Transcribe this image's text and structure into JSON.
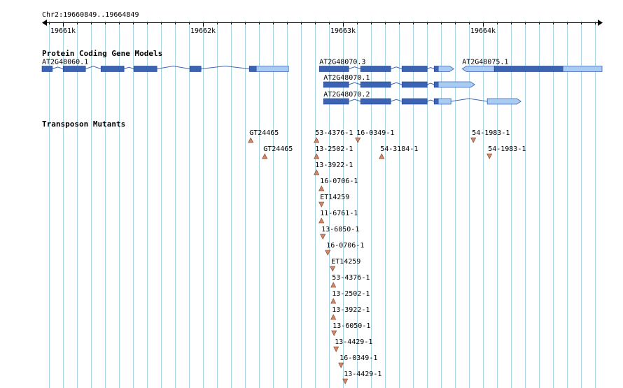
{
  "ruler": {
    "range_label": "Chr2:19660849..19664849",
    "ticks": [
      {
        "label": "19661k",
        "pos": 19661000
      },
      {
        "label": "19662k",
        "pos": 19662000
      },
      {
        "label": "19663k",
        "pos": 19663000
      },
      {
        "label": "19664k",
        "pos": 19664000
      }
    ]
  },
  "colors": {
    "gridline": "#a8d4e4",
    "axis": "#000000",
    "exon_dark": "#3c64b4",
    "exon_light": "#a9cdf2",
    "exon_stroke": "#1e3c8c",
    "intron": "#3c64b4",
    "mutant_marker": "#d2876a",
    "mutant_stroke": "#7a3a1e"
  },
  "tracks": {
    "genes": {
      "title": "Protein Coding Gene Models",
      "models": [
        {
          "name": "AT2G48060.1",
          "row": 0,
          "exons": [
            {
              "s": 19660849,
              "e": 19660923,
              "t": "cds"
            },
            {
              "s": 19661000,
              "e": 19661160,
              "t": "cds"
            },
            {
              "s": 19661270,
              "e": 19661435,
              "t": "cds"
            },
            {
              "s": 19661505,
              "e": 19661670,
              "t": "cds"
            },
            {
              "s": 19661905,
              "e": 19661985,
              "t": "cds"
            },
            {
              "s": 19662330,
              "e": 19662380,
              "t": "cds"
            },
            {
              "s": 19662380,
              "e": 19662610,
              "t": "utr"
            }
          ]
        },
        {
          "name": "AT2G48070.3",
          "row": 0,
          "exons": [
            {
              "s": 19662830,
              "e": 19663040,
              "t": "cds"
            },
            {
              "s": 19663125,
              "e": 19663340,
              "t": "cds"
            },
            {
              "s": 19663420,
              "e": 19663600,
              "t": "cds"
            },
            {
              "s": 19663650,
              "e": 19663680,
              "t": "cds"
            },
            {
              "s": 19663680,
              "e": 19663790,
              "t": "utr",
              "arrow": true
            }
          ]
        },
        {
          "name": "AT2G48075.1",
          "row": 0,
          "exons": [
            {
              "s": 19663850,
              "e": 19664080,
              "t": "utr",
              "arrowLeft": true
            },
            {
              "s": 19664080,
              "e": 19664570,
              "t": "cds"
            },
            {
              "s": 19664570,
              "e": 19664849,
              "t": "utr"
            }
          ]
        },
        {
          "name": "AT2G48070.1",
          "row": 1,
          "exons": [
            {
              "s": 19662860,
              "e": 19663040,
              "t": "cds"
            },
            {
              "s": 19663125,
              "e": 19663340,
              "t": "cds"
            },
            {
              "s": 19663420,
              "e": 19663600,
              "t": "cds"
            },
            {
              "s": 19663650,
              "e": 19663680,
              "t": "cds"
            },
            {
              "s": 19663680,
              "e": 19663940,
              "t": "utr",
              "arrow": true
            }
          ]
        },
        {
          "name": "AT2G48070.2",
          "row": 2,
          "exons": [
            {
              "s": 19662860,
              "e": 19663040,
              "t": "cds"
            },
            {
              "s": 19663125,
              "e": 19663340,
              "t": "cds"
            },
            {
              "s": 19663420,
              "e": 19663600,
              "t": "cds"
            },
            {
              "s": 19663650,
              "e": 19663680,
              "t": "cds"
            },
            {
              "s": 19663680,
              "e": 19663770,
              "t": "utr"
            },
            {
              "s": 19664030,
              "e": 19664270,
              "t": "utr",
              "arrow": true
            }
          ]
        }
      ]
    },
    "mutants": {
      "title": "Transposon Mutants",
      "items": [
        {
          "label": "GT24465",
          "pos": 19662330,
          "row": 0,
          "dir": "up"
        },
        {
          "label": "53-4376-1",
          "pos": 19662800,
          "row": 0,
          "dir": "up"
        },
        {
          "label": "16-0349-1",
          "pos": 19663095,
          "row": 0,
          "dir": "down"
        },
        {
          "label": "54-1983-1",
          "pos": 19663920,
          "row": 0,
          "dir": "down"
        },
        {
          "label": "GT24465",
          "pos": 19662430,
          "row": 1,
          "dir": "up"
        },
        {
          "label": "13-2502-1",
          "pos": 19662800,
          "row": 1,
          "dir": "up"
        },
        {
          "label": "54-3184-1",
          "pos": 19663265,
          "row": 1,
          "dir": "up"
        },
        {
          "label": "54-1983-1",
          "pos": 19664035,
          "row": 1,
          "dir": "down"
        },
        {
          "label": "13-3922-1",
          "pos": 19662800,
          "row": 2,
          "dir": "up"
        },
        {
          "label": "16-0706-1",
          "pos": 19662835,
          "row": 3,
          "dir": "up"
        },
        {
          "label": "ET14259",
          "pos": 19662835,
          "row": 4,
          "dir": "down"
        },
        {
          "label": "11-6761-1",
          "pos": 19662835,
          "row": 5,
          "dir": "up"
        },
        {
          "label": "13-6050-1",
          "pos": 19662845,
          "row": 6,
          "dir": "down"
        },
        {
          "label": "16-0706-1",
          "pos": 19662880,
          "row": 7,
          "dir": "down"
        },
        {
          "label": "ET14259",
          "pos": 19662915,
          "row": 8,
          "dir": "down"
        },
        {
          "label": "53-4376-1",
          "pos": 19662920,
          "row": 9,
          "dir": "up"
        },
        {
          "label": "13-2502-1",
          "pos": 19662920,
          "row": 10,
          "dir": "up"
        },
        {
          "label": "13-3922-1",
          "pos": 19662920,
          "row": 11,
          "dir": "up"
        },
        {
          "label": "13-6050-1",
          "pos": 19662925,
          "row": 12,
          "dir": "down"
        },
        {
          "label": "13-4429-1",
          "pos": 19662940,
          "row": 13,
          "dir": "down"
        },
        {
          "label": "16-0349-1",
          "pos": 19662975,
          "row": 14,
          "dir": "down"
        },
        {
          "label": "13-4429-1",
          "pos": 19663005,
          "row": 15,
          "dir": "down"
        }
      ]
    }
  }
}
